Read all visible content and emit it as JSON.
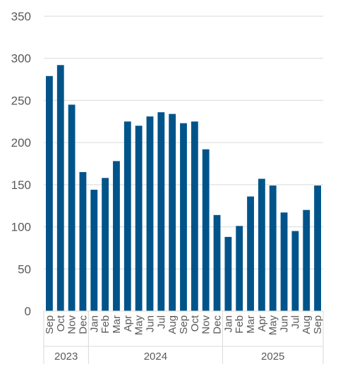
{
  "chart_data": {
    "type": "bar",
    "title": "",
    "xlabel": "",
    "ylabel": "",
    "ylim": [
      0,
      350
    ],
    "yticks": [
      0,
      50,
      100,
      150,
      200,
      250,
      300,
      350
    ],
    "grid": true,
    "legend": "none",
    "bar_color": "#00548A",
    "grid_color": "#D9D9D9",
    "categories": [
      "Sep",
      "Oct",
      "Nov",
      "Dec",
      "Jan",
      "Feb",
      "Mar",
      "Apr",
      "May",
      "Jun",
      "Jul",
      "Aug",
      "Sep",
      "Oct",
      "Nov",
      "Dec",
      "Jan",
      "Feb",
      "Mar",
      "Apr",
      "May",
      "Jun",
      "Jul",
      "Aug",
      "Sep"
    ],
    "values": [
      279,
      292,
      245,
      165,
      144,
      158,
      178,
      225,
      220,
      231,
      236,
      234,
      223,
      225,
      192,
      114,
      88,
      101,
      136,
      157,
      149,
      117,
      95,
      120,
      149
    ],
    "year_groups": [
      {
        "label": "2023",
        "count": 4
      },
      {
        "label": "2024",
        "count": 12
      },
      {
        "label": "2025",
        "count": 9
      }
    ]
  }
}
